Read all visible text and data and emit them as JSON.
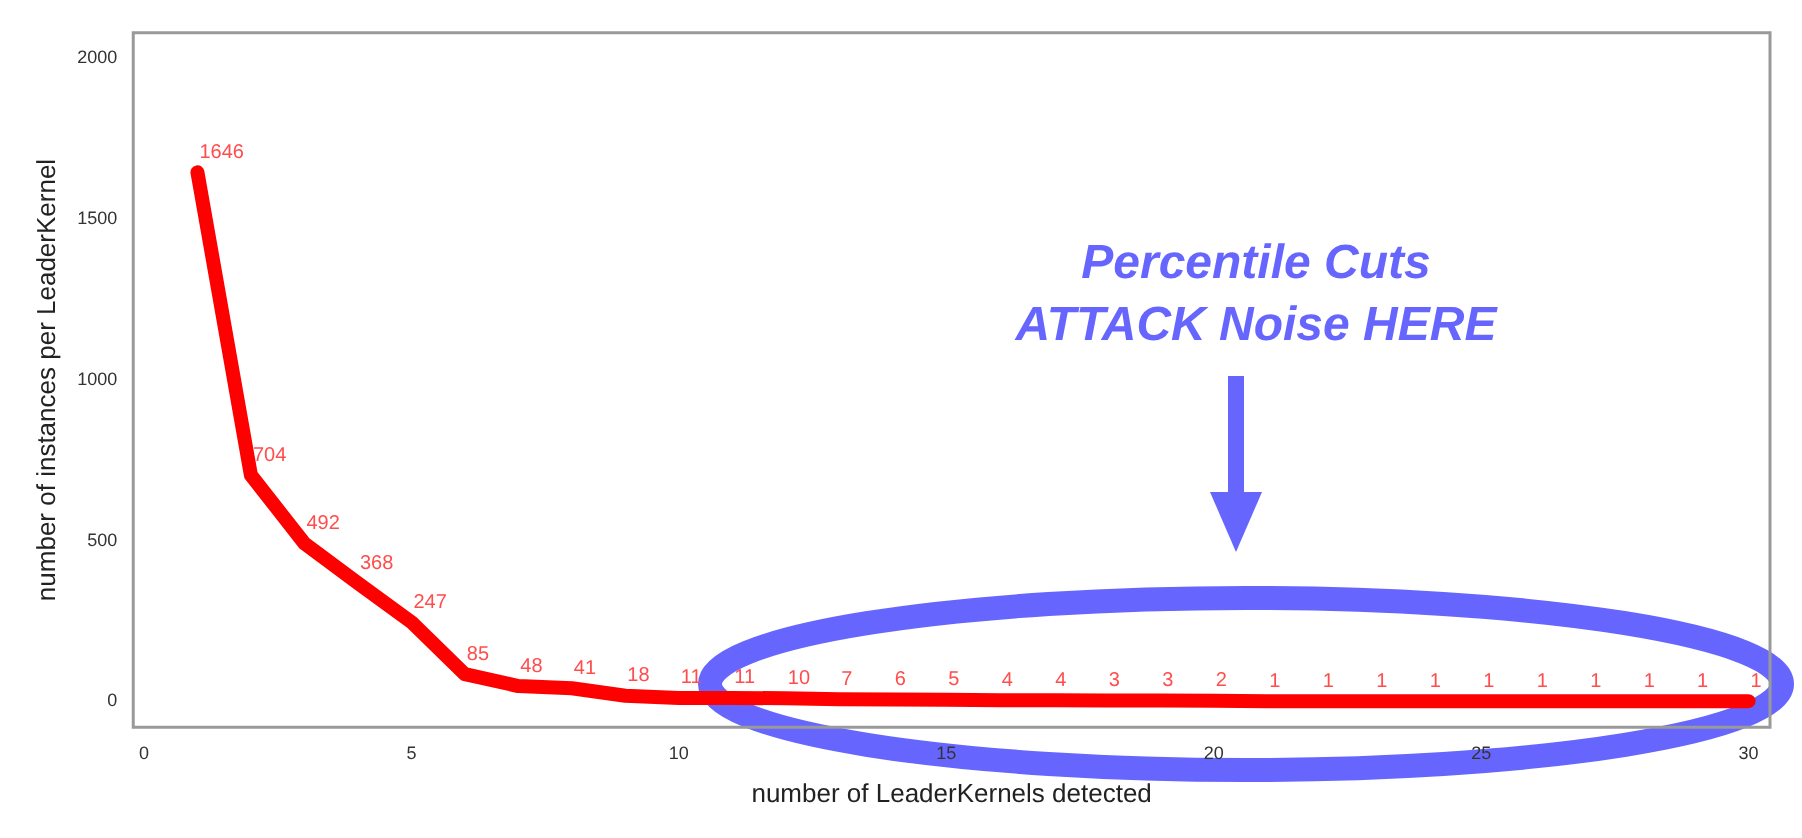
{
  "chart_data": {
    "type": "line",
    "xlabel": "number of LeaderKernels detected",
    "ylabel": "number of instances per LeaderKernel",
    "x": [
      1,
      2,
      3,
      4,
      5,
      6,
      7,
      8,
      9,
      10,
      11,
      12,
      13,
      14,
      15,
      16,
      17,
      18,
      19,
      20,
      21,
      22,
      23,
      24,
      25,
      26,
      27,
      28,
      29,
      30
    ],
    "series": [
      {
        "color": "#ff0000",
        "values": [
          1646,
          704,
          492,
          368,
          247,
          85,
          48,
          41,
          18,
          11,
          11,
          10,
          7,
          6,
          5,
          4,
          4,
          3,
          3,
          2,
          1,
          1,
          1,
          1,
          1,
          1,
          1,
          1,
          1,
          1
        ]
      }
    ],
    "xlim": [
      -0.2,
      30.4
    ],
    "xticks": [
      0,
      5,
      10,
      15,
      20,
      25,
      30
    ],
    "ylim": [
      -80,
      2080
    ],
    "yticks": [
      0,
      500,
      1000,
      1500,
      2000
    ],
    "data_labels": true,
    "grid": false,
    "legend": false,
    "marker": "none",
    "line_style": "solid",
    "annotations": [
      "Percentile Cuts\nATTACK Noise HERE"
    ]
  }
}
